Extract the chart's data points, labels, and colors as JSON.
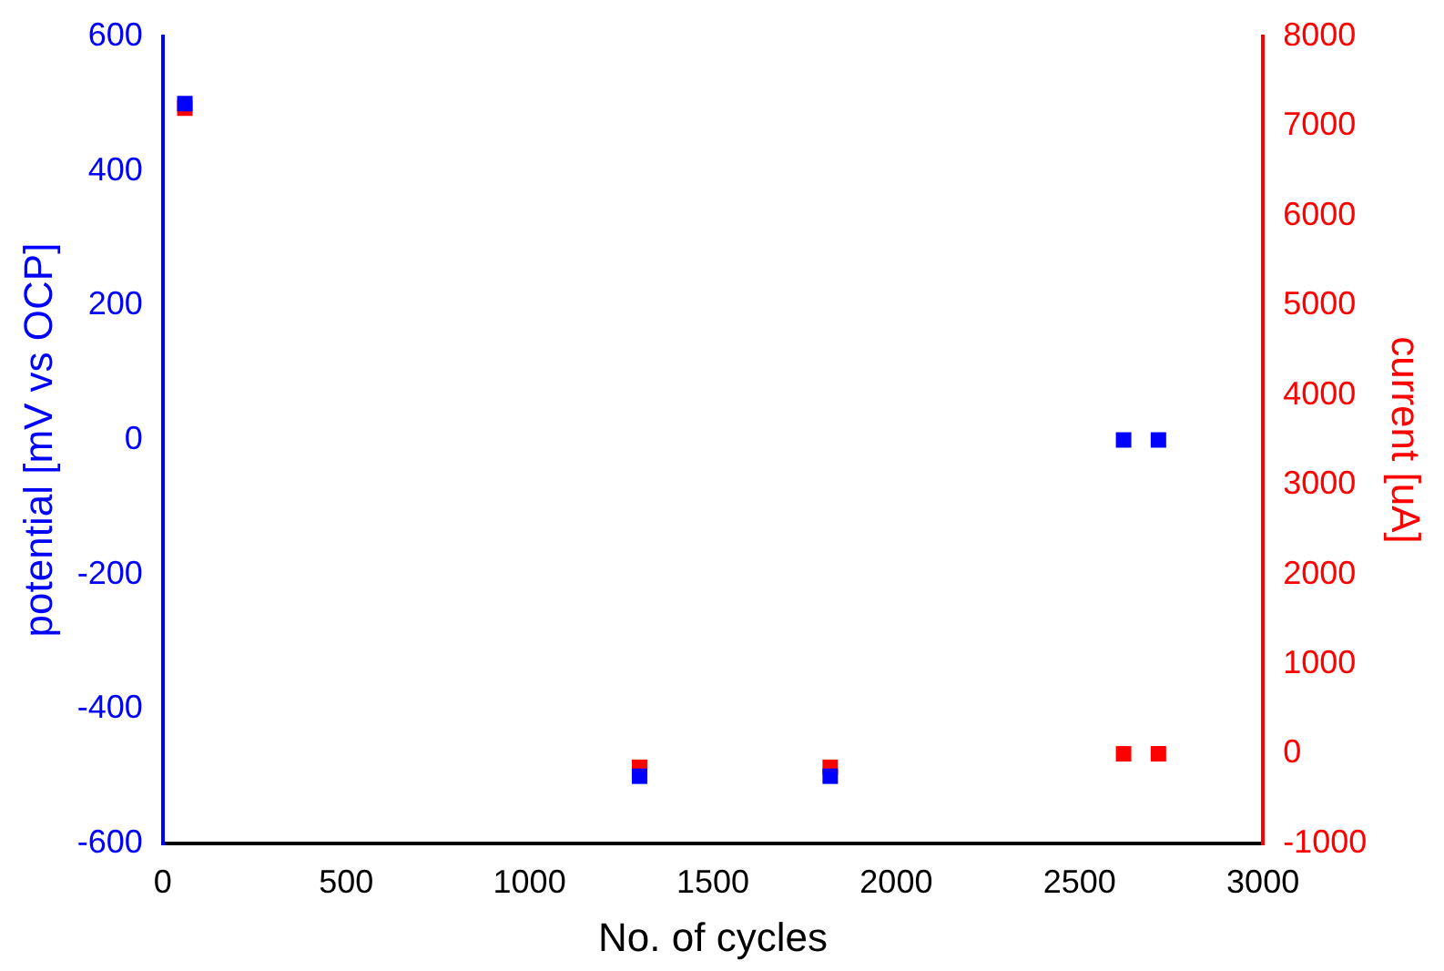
{
  "chart_data": {
    "type": "scatter",
    "xlabel": "No. of cycles",
    "ylabel": "potential [mV vs OCP]",
    "y2label": "current [uA]",
    "marker": "square",
    "grid": false,
    "legend": false,
    "xlim": [
      0,
      3000
    ],
    "xticks": [
      0,
      500,
      1000,
      1500,
      2000,
      2500,
      3000
    ],
    "ylim": [
      -600,
      600
    ],
    "yticks": [
      -600,
      -400,
      -200,
      0,
      200,
      400,
      600
    ],
    "y2lim": [
      -1000,
      8000
    ],
    "y2ticks": [
      -1000,
      0,
      1000,
      2000,
      3000,
      4000,
      5000,
      6000,
      7000,
      8000
    ],
    "series": [
      {
        "color": "#0000ff",
        "x": [
          60,
          1300,
          1820,
          2620,
          2715
        ],
        "values": [
          500,
          -500,
          -500,
          0,
          0
        ]
      },
      {
        "color": "#ff0000",
        "axis": "y2",
        "x": [
          60,
          1300,
          1820,
          2620,
          2715
        ],
        "values": [
          7200,
          -150,
          -150,
          0,
          0
        ]
      }
    ]
  }
}
